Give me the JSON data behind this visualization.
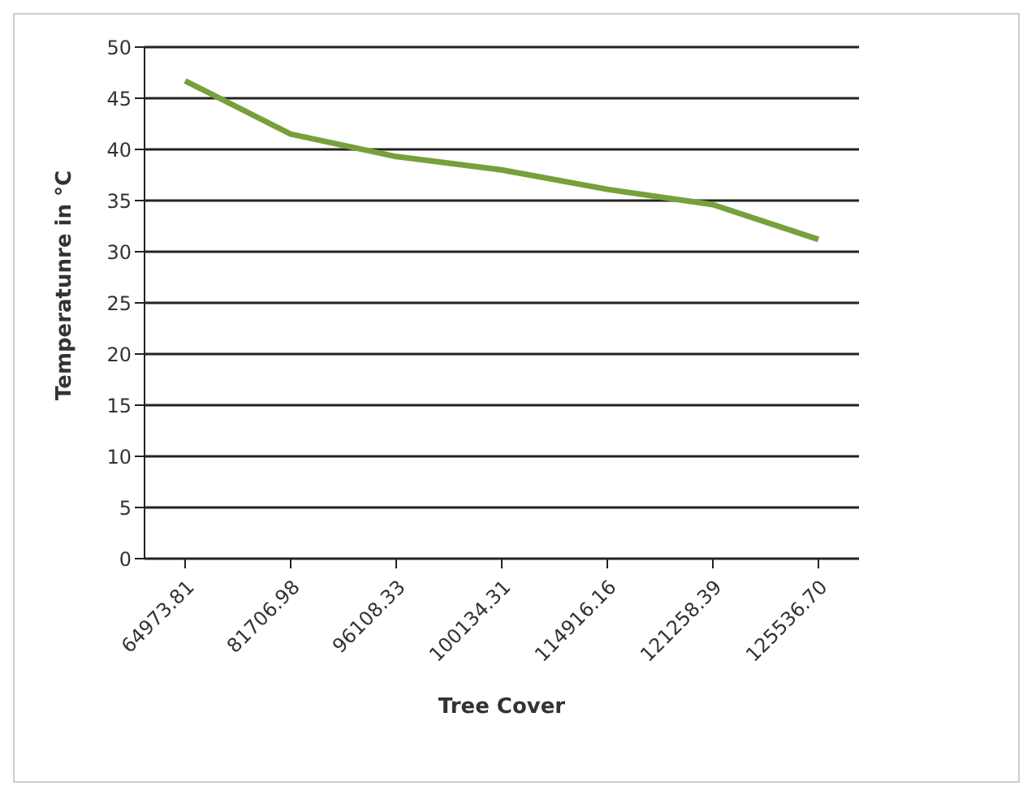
{
  "chart_data": {
    "type": "line",
    "xlabel": "Tree Cover",
    "ylabel": "Temperatunre in °C",
    "categories": [
      "64973.81",
      "81706.98",
      "96108.33",
      "100134.31",
      "114916.16",
      "121258.39",
      "125536.70"
    ],
    "series": [
      {
        "color": "#77a03c",
        "values": [
          46.7,
          41.5,
          39.3,
          38.0,
          36.1,
          34.6,
          31.2
        ]
      }
    ],
    "ylim": [
      0,
      50
    ],
    "yticks": [
      0,
      5,
      10,
      15,
      20,
      25,
      30,
      35,
      40,
      45,
      50
    ],
    "grid": "y",
    "legend": false,
    "marker": "none",
    "line_style": "solid"
  }
}
